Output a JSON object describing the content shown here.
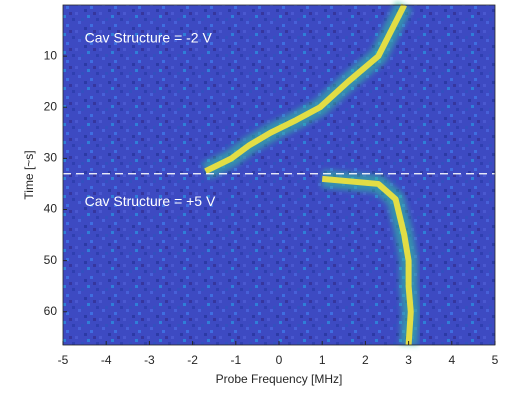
{
  "chart_data": {
    "type": "heatmap-trace",
    "xlabel": "Probe Frequency [MHz]",
    "ylabel": "Time [~s]",
    "xlim": [
      -5,
      5
    ],
    "xticks": [
      -5,
      -4,
      -3,
      -2,
      -1,
      0,
      1,
      2,
      3,
      4,
      5
    ],
    "ylim": [
      0,
      66.5
    ],
    "yticks": [
      10,
      20,
      30,
      40,
      50,
      60
    ],
    "y_reversed": true,
    "hlines": [
      33
    ],
    "annotations": [
      {
        "text": "Cav Structure = -2 V",
        "x": -4.5,
        "y": 5
      },
      {
        "text": "Cav Structure = +5 V",
        "x": -4.5,
        "y": 37
      }
    ],
    "series": [
      {
        "color": "#f5e63a",
        "x": [
          2.9,
          2.6,
          2.3,
          1.6,
          0.95,
          0.4,
          -0.2,
          -0.7,
          -1.1,
          -1.7
        ],
        "values": [
          0,
          5,
          10,
          15,
          20,
          22.5,
          25,
          27.5,
          30,
          32.5
        ]
      },
      {
        "color": "#f5e63a",
        "x": [
          1.0,
          2.3,
          2.7,
          2.9,
          3.0,
          3.0,
          3.05,
          3.0
        ],
        "values": [
          34,
          35,
          38,
          45,
          50,
          55,
          60,
          66.5
        ]
      }
    ]
  }
}
